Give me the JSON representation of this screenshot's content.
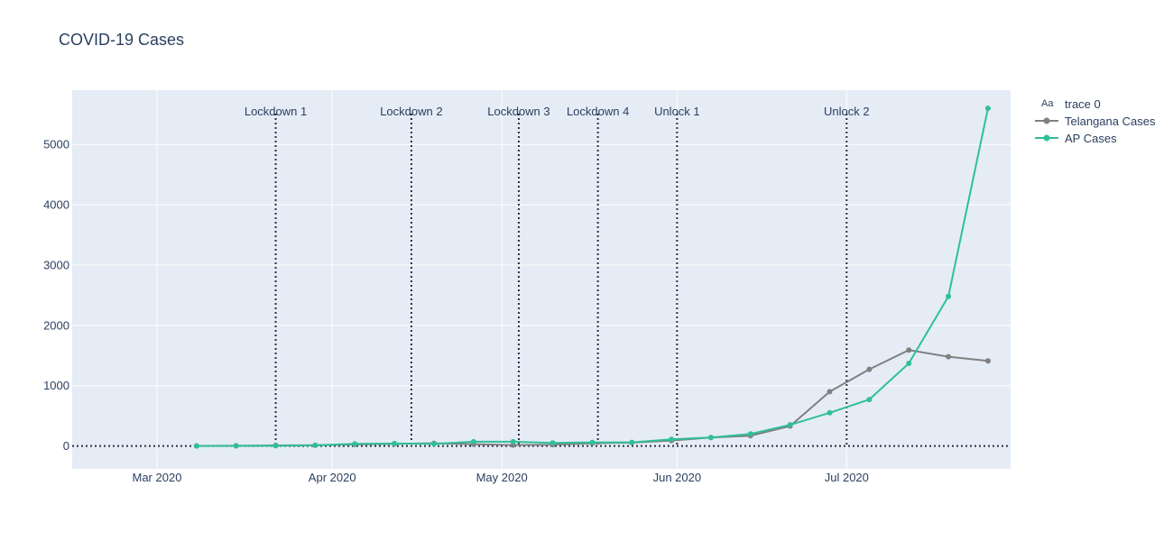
{
  "chart_data": {
    "type": "line",
    "title": "COVID-19 Cases",
    "xlabel": "",
    "ylabel": "",
    "x_type": "date",
    "xlim": [
      "2020-02-15",
      "2020-07-30"
    ],
    "ylim": [
      -380,
      5900
    ],
    "x_ticks": [
      {
        "date": "2020-03-01",
        "label": "Mar 2020"
      },
      {
        "date": "2020-04-01",
        "label": "Apr 2020"
      },
      {
        "date": "2020-05-01",
        "label": "May 2020"
      },
      {
        "date": "2020-06-01",
        "label": "Jun 2020"
      },
      {
        "date": "2020-07-01",
        "label": "Jul 2020"
      }
    ],
    "y_ticks": [
      0,
      1000,
      2000,
      3000,
      4000,
      5000
    ],
    "grid": true,
    "legend_position": "top-right",
    "legend": {
      "header_icon": "Aa",
      "header_label": "trace 0"
    },
    "series": [
      {
        "name": "Telangana Cases",
        "color": "#808080",
        "points": [
          {
            "x": "2020-03-08",
            "y": 2
          },
          {
            "x": "2020-03-15",
            "y": 4
          },
          {
            "x": "2020-03-22",
            "y": 8
          },
          {
            "x": "2020-03-29",
            "y": 12
          },
          {
            "x": "2020-04-05",
            "y": 25
          },
          {
            "x": "2020-04-12",
            "y": 35
          },
          {
            "x": "2020-04-19",
            "y": 45
          },
          {
            "x": "2020-04-26",
            "y": 30
          },
          {
            "x": "2020-05-03",
            "y": 15
          },
          {
            "x": "2020-05-10",
            "y": 20
          },
          {
            "x": "2020-05-17",
            "y": 45
          },
          {
            "x": "2020-05-24",
            "y": 55
          },
          {
            "x": "2020-05-31",
            "y": 90
          },
          {
            "x": "2020-06-07",
            "y": 140
          },
          {
            "x": "2020-06-14",
            "y": 170
          },
          {
            "x": "2020-06-21",
            "y": 330
          },
          {
            "x": "2020-06-28",
            "y": 900
          },
          {
            "x": "2020-07-05",
            "y": 1270
          },
          {
            "x": "2020-07-12",
            "y": 1590
          },
          {
            "x": "2020-07-19",
            "y": 1480
          },
          {
            "x": "2020-07-26",
            "y": 1410
          }
        ]
      },
      {
        "name": "AP Cases",
        "color": "#2fbf99",
        "points": [
          {
            "x": "2020-03-08",
            "y": 0
          },
          {
            "x": "2020-03-15",
            "y": 1
          },
          {
            "x": "2020-03-22",
            "y": 4
          },
          {
            "x": "2020-03-29",
            "y": 10
          },
          {
            "x": "2020-04-05",
            "y": 35
          },
          {
            "x": "2020-04-12",
            "y": 40
          },
          {
            "x": "2020-04-19",
            "y": 35
          },
          {
            "x": "2020-04-26",
            "y": 70
          },
          {
            "x": "2020-05-03",
            "y": 70
          },
          {
            "x": "2020-05-10",
            "y": 50
          },
          {
            "x": "2020-05-17",
            "y": 60
          },
          {
            "x": "2020-05-24",
            "y": 60
          },
          {
            "x": "2020-05-31",
            "y": 110
          },
          {
            "x": "2020-06-07",
            "y": 140
          },
          {
            "x": "2020-06-14",
            "y": 200
          },
          {
            "x": "2020-06-21",
            "y": 350
          },
          {
            "x": "2020-06-28",
            "y": 550
          },
          {
            "x": "2020-07-05",
            "y": 770
          },
          {
            "x": "2020-07-12",
            "y": 1370
          },
          {
            "x": "2020-07-19",
            "y": 2480
          },
          {
            "x": "2020-07-26",
            "y": 5600
          }
        ]
      }
    ],
    "annotations": [
      {
        "label": "Lockdown 1",
        "x": "2020-03-22"
      },
      {
        "label": "Lockdown 2",
        "x": "2020-04-15"
      },
      {
        "label": "Lockdown 3",
        "x": "2020-05-04"
      },
      {
        "label": "Lockdown 4",
        "x": "2020-05-18"
      },
      {
        "label": "Unlock 1",
        "x": "2020-06-01"
      },
      {
        "label": "Unlock 2",
        "x": "2020-07-01"
      }
    ],
    "colors": {
      "plot_bg": "#e5ecf6",
      "grid": "#ffffff",
      "annotation_line": "#2a3240",
      "text": "#2a3f5f"
    }
  }
}
